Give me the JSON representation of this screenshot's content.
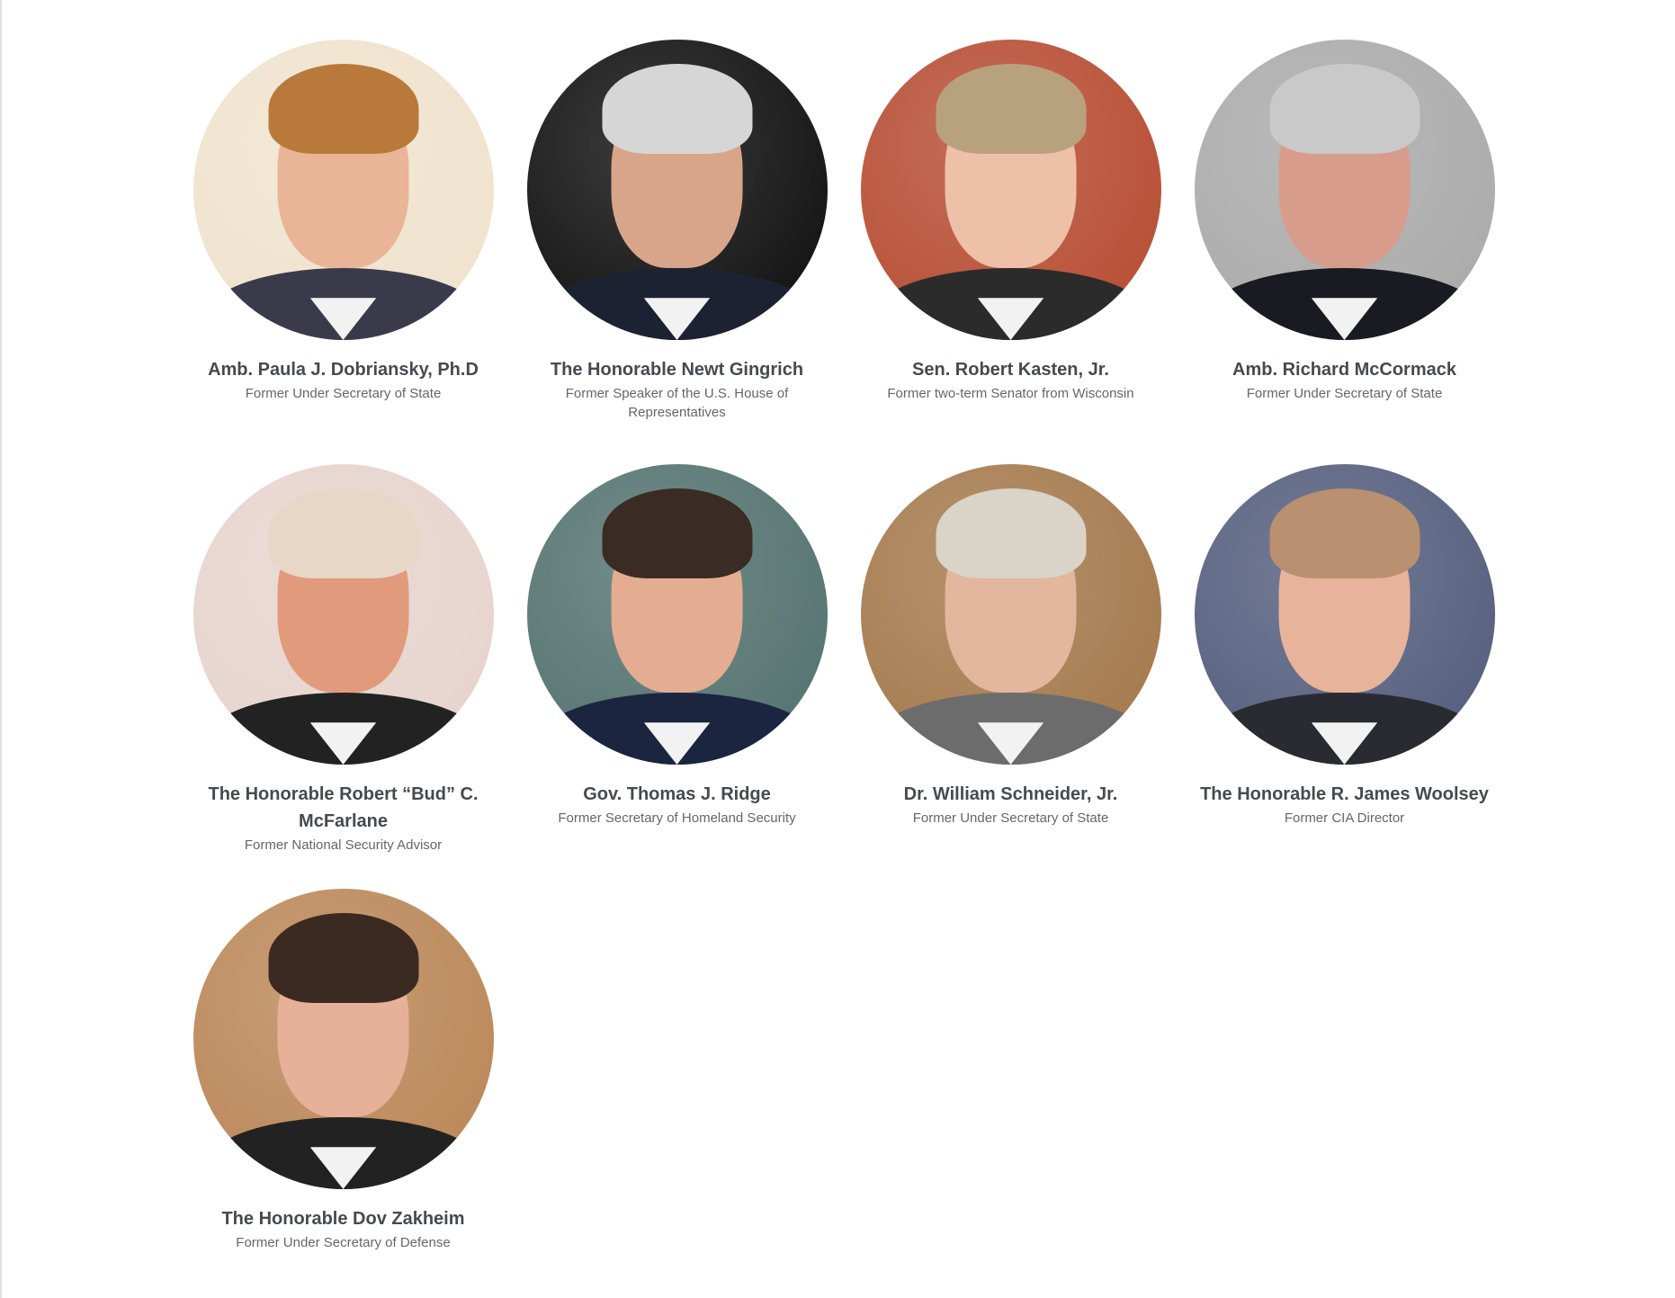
{
  "people": [
    {
      "name": "Amb. Paula J. Dobriansky, Ph.D",
      "title": "Former Under Secretary of State",
      "bg": "#efe2cc",
      "skin": "#e9b596",
      "hair": "#b9793a",
      "suit": "#3a3a4a"
    },
    {
      "name": "The Honorable Newt Gingrich",
      "title": "Former Speaker of the U.S. House of Representatives",
      "bg": "#0b0b0b",
      "skin": "#d9a58a",
      "hair": "#d6d6d6",
      "suit": "#1d2233"
    },
    {
      "name": "Sen. Robert Kasten, Jr.",
      "title": "Former two-term Senator from Wisconsin",
      "bg": "#b5492e",
      "skin": "#eec0a8",
      "hair": "#b8a27e",
      "suit": "#2b2b2b"
    },
    {
      "name": "Amb. Richard McCormack",
      "title": "Former Under Secretary of State",
      "bg": "#a8a8a8",
      "skin": "#d89c8c",
      "hair": "#c9c9c9",
      "suit": "#1a1a22"
    },
    {
      "name": "The Honorable Robert “Bud” C. McFarlane",
      "title": "Former National Security Advisor",
      "bg": "#e6d2cc",
      "skin": "#e19a7c",
      "hair": "#e8d6c6",
      "suit": "#222"
    },
    {
      "name": "Gov. Thomas J. Ridge",
      "title": "Former Secretary of Homeland Security",
      "bg": "#4f6f6c",
      "skin": "#e4ad92",
      "hair": "#3a2c24",
      "suit": "#1b2540"
    },
    {
      "name": "Dr. William Schneider, Jr.",
      "title": "Former Under Secretary of State",
      "bg": "#a27648",
      "skin": "#e3b69e",
      "hair": "#d9d3c8",
      "suit": "#6c6c6c"
    },
    {
      "name": "The Honorable R. James Woolsey",
      "title": "Former CIA Director",
      "bg": "#505a7a",
      "skin": "#e7b39a",
      "hair": "#b99070",
      "suit": "#2a2a33"
    },
    {
      "name": "The Honorable Dov Zakheim",
      "title": "Former Under Secretary of Defense",
      "bg": "#b98454",
      "skin": "#e6b198",
      "hair": "#3b2a22",
      "suit": "#222"
    }
  ]
}
